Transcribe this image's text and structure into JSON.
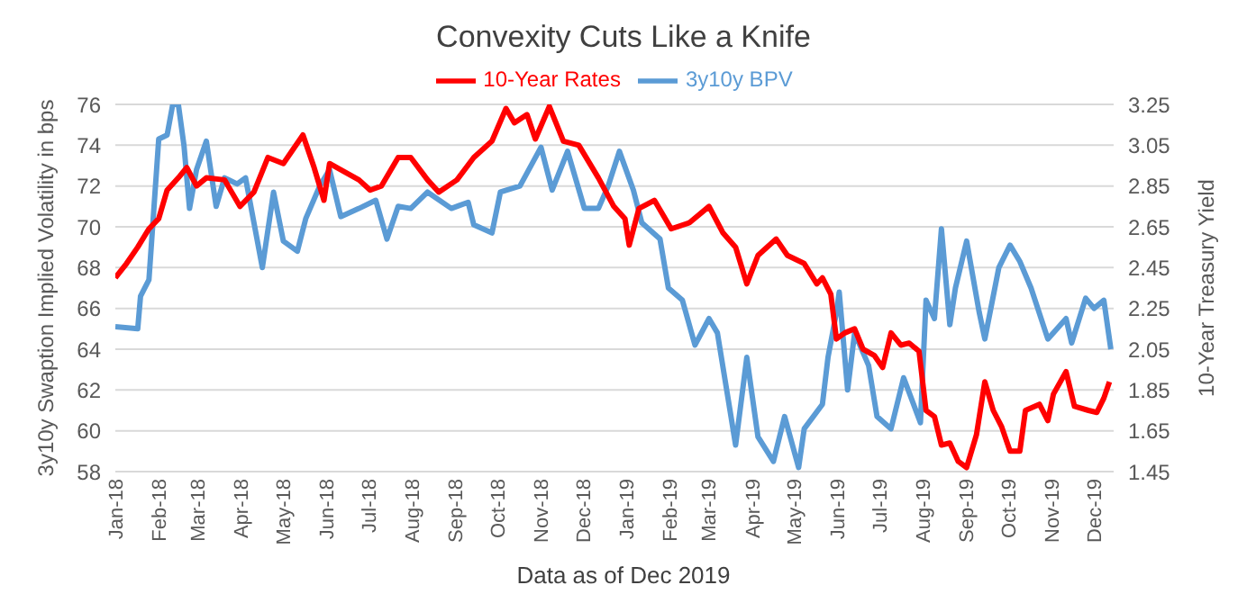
{
  "chart_data": {
    "type": "line",
    "title": "Convexity Cuts Like a Knife",
    "ylabel": "3y10y Swaption Implied Volatility in bps",
    "y2label": "10-Year Treasury Yield",
    "annotations": [
      "Data as of Dec 2019"
    ],
    "legend": "top",
    "grid": "y",
    "marker": "none",
    "xlim": [
      "2018-01-01",
      "2019-12-15"
    ],
    "xticks": [
      {
        "value": "2018-01",
        "label": "Jan-18"
      },
      {
        "value": "2018-02",
        "label": "Feb-18"
      },
      {
        "value": "2018-03",
        "label": "Mar-18"
      },
      {
        "value": "2018-04",
        "label": "Apr-18"
      },
      {
        "value": "2018-05",
        "label": "May-18"
      },
      {
        "value": "2018-06",
        "label": "Jun-18"
      },
      {
        "value": "2018-07",
        "label": "Jul-18"
      },
      {
        "value": "2018-08",
        "label": "Aug-18"
      },
      {
        "value": "2018-09",
        "label": "Sep-18"
      },
      {
        "value": "2018-10",
        "label": "Oct-18"
      },
      {
        "value": "2018-11",
        "label": "Nov-18"
      },
      {
        "value": "2018-12",
        "label": "Dec-18"
      },
      {
        "value": "2019-01",
        "label": "Jan-19"
      },
      {
        "value": "2019-02",
        "label": "Feb-19"
      },
      {
        "value": "2019-03",
        "label": "Mar-19"
      },
      {
        "value": "2019-04",
        "label": "Apr-19"
      },
      {
        "value": "2019-05",
        "label": "May-19"
      },
      {
        "value": "2019-06",
        "label": "Jun-19"
      },
      {
        "value": "2019-07",
        "label": "Jul-19"
      },
      {
        "value": "2019-08",
        "label": "Aug-19"
      },
      {
        "value": "2019-09",
        "label": "Sep-19"
      },
      {
        "value": "2019-10",
        "label": "Oct-19"
      },
      {
        "value": "2019-11",
        "label": "Nov-19"
      },
      {
        "value": "2019-12",
        "label": "Dec-19"
      }
    ],
    "ylim": [
      58,
      76
    ],
    "yticks": [
      58,
      60,
      62,
      64,
      66,
      68,
      70,
      72,
      74,
      76
    ],
    "y2lim": [
      1.45,
      3.25
    ],
    "y2ticks": [
      1.45,
      1.65,
      1.85,
      2.05,
      2.25,
      2.45,
      2.65,
      2.85,
      3.05,
      3.25
    ],
    "series": [
      {
        "name": "3y10y BPV",
        "color": "#5b9bd5",
        "x": [
          "2018-01-01",
          "2018-01-17",
          "2018-01-19",
          "2018-01-25",
          "2018-02-01",
          "2018-02-07",
          "2018-02-11",
          "2018-02-15",
          "2018-02-19",
          "2018-02-23",
          "2018-02-28",
          "2018-03-07",
          "2018-03-14",
          "2018-03-20",
          "2018-03-29",
          "2018-04-04",
          "2018-04-10",
          "2018-04-16",
          "2018-04-24",
          "2018-05-01",
          "2018-05-11",
          "2018-05-17",
          "2018-05-27",
          "2018-06-03",
          "2018-06-11",
          "2018-06-24",
          "2018-07-06",
          "2018-07-14",
          "2018-07-22",
          "2018-07-31",
          "2018-08-12",
          "2018-08-29",
          "2018-09-10",
          "2018-09-14",
          "2018-09-27",
          "2018-10-03",
          "2018-10-17",
          "2018-11-01",
          "2018-11-09",
          "2018-11-20",
          "2018-12-02",
          "2018-12-12",
          "2018-12-19",
          "2018-12-27",
          "2019-01-06",
          "2019-01-12",
          "2019-01-25",
          "2019-01-31",
          "2019-02-10",
          "2019-02-19",
          "2019-03-01",
          "2019-03-07",
          "2019-03-16",
          "2019-03-20",
          "2019-03-28",
          "2019-04-05",
          "2019-04-16",
          "2019-04-24",
          "2019-05-04",
          "2019-05-08",
          "2019-05-21",
          "2019-05-25",
          "2019-05-31",
          "2019-06-02",
          "2019-06-08",
          "2019-06-13",
          "2019-06-23",
          "2019-06-29",
          "2019-07-09",
          "2019-07-18",
          "2019-07-30",
          "2019-08-03",
          "2019-08-09",
          "2019-08-14",
          "2019-08-20",
          "2019-08-24",
          "2019-09-01",
          "2019-09-10",
          "2019-09-14",
          "2019-09-24",
          "2019-10-02",
          "2019-10-09",
          "2019-10-17",
          "2019-10-29",
          "2019-11-11",
          "2019-11-15",
          "2019-11-25",
          "2019-12-01",
          "2019-12-08",
          "2019-12-13"
        ],
        "values": [
          65.1,
          65.0,
          66.6,
          67.4,
          74.3,
          74.5,
          76,
          76,
          74,
          70.9,
          72.8,
          74.2,
          71,
          72.4,
          72.1,
          72.4,
          70.2,
          68,
          71.7,
          69.3,
          68.8,
          70.4,
          72,
          72.8,
          70.5,
          70.9,
          71.3,
          69.4,
          71,
          70.9,
          71.7,
          70.9,
          71.2,
          70.1,
          69.7,
          71.7,
          72,
          73.9,
          71.8,
          73.7,
          70.9,
          70.9,
          72,
          73.7,
          71.8,
          70.2,
          69.4,
          67,
          66.4,
          64.2,
          65.5,
          64.8,
          61,
          59.3,
          63.6,
          59.7,
          58.5,
          60.7,
          58.2,
          60.1,
          61.3,
          63.6,
          65.8,
          66.8,
          62,
          64.8,
          63.2,
          60.7,
          60.1,
          62.6,
          60.4,
          66.4,
          65.5,
          69.9,
          65.2,
          67,
          69.3,
          65.8,
          64.5,
          68,
          69.1,
          68.3,
          67,
          64.5,
          65.5,
          64.3,
          66.5,
          66,
          66.4,
          64
        ]
      },
      {
        "name": "10-Year Rates",
        "color": "#ff0000",
        "axis": "y2",
        "x": [
          "2018-01-01",
          "2018-01-09",
          "2018-01-17",
          "2018-01-25",
          "2018-02-01",
          "2018-02-07",
          "2018-02-15",
          "2018-02-21",
          "2018-02-28",
          "2018-03-07",
          "2018-03-20",
          "2018-03-31",
          "2018-04-10",
          "2018-04-20",
          "2018-05-01",
          "2018-05-15",
          "2018-05-23",
          "2018-05-30",
          "2018-06-03",
          "2018-06-11",
          "2018-06-24",
          "2018-07-02",
          "2018-07-10",
          "2018-07-22",
          "2018-07-31",
          "2018-08-12",
          "2018-08-20",
          "2018-09-02",
          "2018-09-14",
          "2018-09-27",
          "2018-10-07",
          "2018-10-13",
          "2018-10-22",
          "2018-10-28",
          "2018-11-07",
          "2018-11-17",
          "2018-11-28",
          "2018-12-12",
          "2018-12-23",
          "2018-12-31",
          "2019-01-03",
          "2019-01-10",
          "2019-01-21",
          "2019-02-02",
          "2019-02-15",
          "2019-03-01",
          "2019-03-11",
          "2019-03-20",
          "2019-03-28",
          "2019-04-05",
          "2019-04-18",
          "2019-04-26",
          "2019-05-08",
          "2019-05-17",
          "2019-05-21",
          "2019-05-27",
          "2019-05-31",
          "2019-06-06",
          "2019-06-13",
          "2019-06-19",
          "2019-06-27",
          "2019-07-03",
          "2019-07-09",
          "2019-07-16",
          "2019-07-22",
          "2019-07-29",
          "2019-08-03",
          "2019-08-09",
          "2019-08-14",
          "2019-08-20",
          "2019-08-26",
          "2019-09-01",
          "2019-09-08",
          "2019-09-14",
          "2019-09-20",
          "2019-09-26",
          "2019-10-02",
          "2019-10-09",
          "2019-10-13",
          "2019-10-23",
          "2019-10-29",
          "2019-11-02",
          "2019-11-11",
          "2019-11-17",
          "2019-11-27",
          "2019-12-03",
          "2019-12-08",
          "2019-12-12"
        ],
        "values": [
          2.4,
          2.47,
          2.55,
          2.64,
          2.69,
          2.83,
          2.89,
          2.94,
          2.85,
          2.89,
          2.88,
          2.75,
          2.82,
          2.99,
          2.96,
          3.1,
          2.94,
          2.78,
          2.96,
          2.93,
          2.88,
          2.83,
          2.85,
          2.99,
          2.99,
          2.88,
          2.82,
          2.88,
          2.99,
          3.07,
          3.23,
          3.16,
          3.2,
          3.08,
          3.24,
          3.07,
          3.05,
          2.89,
          2.75,
          2.69,
          2.56,
          2.74,
          2.78,
          2.64,
          2.67,
          2.75,
          2.62,
          2.55,
          2.37,
          2.51,
          2.59,
          2.51,
          2.47,
          2.37,
          2.4,
          2.32,
          2.1,
          2.13,
          2.15,
          2.05,
          2.02,
          1.96,
          2.13,
          2.07,
          2.08,
          2.04,
          1.75,
          1.72,
          1.58,
          1.59,
          1.5,
          1.47,
          1.63,
          1.89,
          1.75,
          1.67,
          1.55,
          1.55,
          1.75,
          1.78,
          1.7,
          1.83,
          1.94,
          1.77,
          1.75,
          1.74,
          1.81,
          1.89
        ]
      }
    ]
  }
}
